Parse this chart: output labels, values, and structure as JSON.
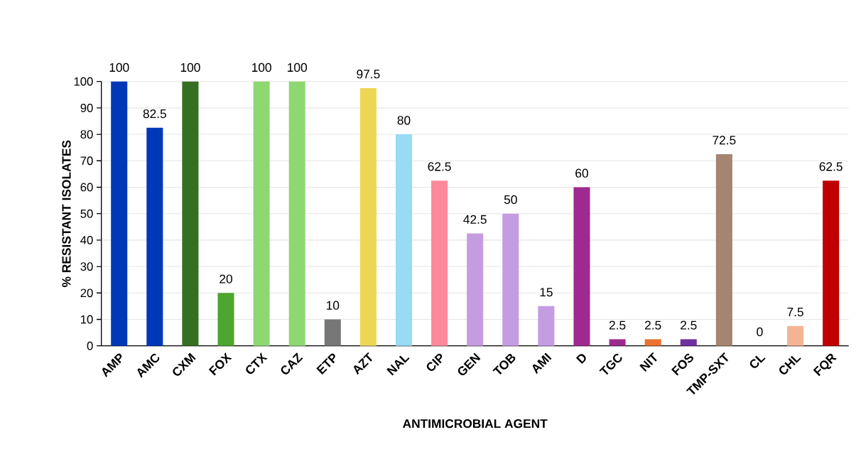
{
  "chart_data": {
    "type": "bar",
    "xlabel": "ANTIMICROBIAL AGENT",
    "ylabel": "% RESISTANT ISOLATES",
    "categories": [
      "AMP",
      "AMC",
      "CXM",
      "FOX",
      "CTX",
      "CAZ",
      "ETP",
      "AZT",
      "NAL",
      "CIP",
      "GEN",
      "TOB",
      "AMI",
      "D",
      "TGC",
      "NIT",
      "FOS",
      "TMP-SXT",
      "CL",
      "CHL",
      "FQR"
    ],
    "values": [
      100,
      82.5,
      100,
      20,
      100,
      100,
      10,
      97.5,
      80,
      62.5,
      42.5,
      50,
      15,
      60,
      2.5,
      2.5,
      2.5,
      72.5,
      0,
      7.5,
      62.5
    ],
    "colors": [
      "#0038b8",
      "#0038b8",
      "#356f22",
      "#4ea52f",
      "#8ed872",
      "#8ed872",
      "#777777",
      "#edd654",
      "#97dbf5",
      "#fd8a9b",
      "#c49ce0",
      "#c49ce0",
      "#c49ce0",
      "#9e2a8f",
      "#9e2a8f",
      "#ea7232",
      "#7030a0",
      "#a58472",
      "#a6a6a6",
      "#f4b493",
      "#c00000"
    ],
    "ylim": [
      0,
      100
    ],
    "yticks": [
      0,
      10,
      20,
      30,
      40,
      50,
      60,
      70,
      80,
      90,
      100
    ],
    "grid": "y",
    "data_labels": true
  }
}
